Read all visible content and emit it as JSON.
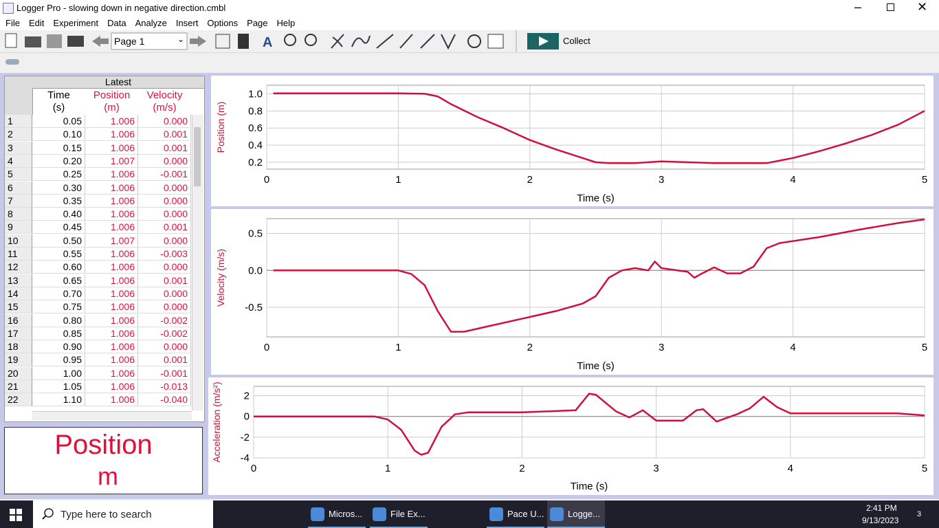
{
  "window": {
    "title": "Logger Pro - slowing down in negative direction.cmbl"
  },
  "menu": [
    "File",
    "Edit",
    "Experiment",
    "Data",
    "Analyze",
    "Insert",
    "Options",
    "Page",
    "Help"
  ],
  "toolbar": {
    "page": "Page 1",
    "collect": "Collect"
  },
  "table": {
    "group": "Latest",
    "columns": [
      {
        "name": "Time",
        "unit": "(s)"
      },
      {
        "name": "Position",
        "unit": "(m)"
      },
      {
        "name": "Velocity",
        "unit": "(m/s)"
      }
    ],
    "rows": [
      [
        "1",
        "0.05",
        "1.006",
        "0.000"
      ],
      [
        "2",
        "0.10",
        "1.006",
        "0.001"
      ],
      [
        "3",
        "0.15",
        "1.006",
        "0.001"
      ],
      [
        "4",
        "0.20",
        "1.007",
        "0.000"
      ],
      [
        "5",
        "0.25",
        "1.006",
        "-0.001"
      ],
      [
        "6",
        "0.30",
        "1.006",
        "0.000"
      ],
      [
        "7",
        "0.35",
        "1.006",
        "0.000"
      ],
      [
        "8",
        "0.40",
        "1.006",
        "0.000"
      ],
      [
        "9",
        "0.45",
        "1.006",
        "0.001"
      ],
      [
        "10",
        "0.50",
        "1.007",
        "0.000"
      ],
      [
        "11",
        "0.55",
        "1.006",
        "-0.003"
      ],
      [
        "12",
        "0.60",
        "1.006",
        "0.000"
      ],
      [
        "13",
        "0.65",
        "1.006",
        "0.001"
      ],
      [
        "14",
        "0.70",
        "1.006",
        "0.000"
      ],
      [
        "15",
        "0.75",
        "1.006",
        "0.000"
      ],
      [
        "16",
        "0.80",
        "1.006",
        "-0.002"
      ],
      [
        "17",
        "0.85",
        "1.006",
        "-0.002"
      ],
      [
        "18",
        "0.90",
        "1.006",
        "0.000"
      ],
      [
        "19",
        "0.95",
        "1.006",
        "0.001"
      ],
      [
        "20",
        "1.00",
        "1.006",
        "-0.001"
      ],
      [
        "21",
        "1.05",
        "1.006",
        "-0.013"
      ],
      [
        "22",
        "1.10",
        "1.006",
        "-0.040"
      ]
    ]
  },
  "meter": {
    "label": "Position",
    "unit": "m"
  },
  "taskbar": {
    "search": "Type here to search",
    "apps": [
      "Micros...",
      "File Ex...",
      "Pace U...",
      "Logge..."
    ],
    "time": "2:41 PM",
    "date": "9/13/2023",
    "notifications": "3"
  },
  "chart_data": [
    {
      "type": "line",
      "xlabel": "Time (s)",
      "ylabel": "Position (m)",
      "color": "#d0103a",
      "grid": true,
      "x": [
        0.05,
        1.0,
        1.2,
        1.3,
        1.4,
        1.6,
        1.8,
        2.0,
        2.2,
        2.4,
        2.5,
        2.6,
        2.8,
        3.0,
        3.2,
        3.4,
        3.6,
        3.8,
        4.0,
        4.2,
        4.4,
        4.6,
        4.8,
        5.0
      ],
      "values": [
        1.006,
        1.006,
        1.0,
        0.97,
        0.88,
        0.73,
        0.6,
        0.46,
        0.35,
        0.25,
        0.2,
        0.19,
        0.19,
        0.21,
        0.2,
        0.19,
        0.19,
        0.19,
        0.25,
        0.33,
        0.42,
        0.52,
        0.64,
        0.8
      ],
      "xlim": [
        0,
        5
      ],
      "xticks": [
        0,
        1,
        2,
        3,
        4,
        5
      ],
      "ylim": [
        0.12,
        1.1
      ],
      "yticks": [
        0.2,
        0.4,
        0.6,
        0.8,
        {
          "value": 1,
          "label": "1.0"
        }
      ]
    },
    {
      "type": "line",
      "xlabel": "Time (s)",
      "ylabel": "Velocity (m/s)",
      "color": "#d0103a",
      "grid": true,
      "x": [
        0.05,
        1.0,
        1.1,
        1.2,
        1.3,
        1.4,
        1.5,
        1.7,
        2.0,
        2.2,
        2.4,
        2.5,
        2.6,
        2.7,
        2.8,
        2.9,
        2.95,
        3.0,
        3.2,
        3.25,
        3.3,
        3.4,
        3.5,
        3.6,
        3.7,
        3.8,
        3.9,
        4.2,
        4.5,
        4.8,
        5.0
      ],
      "values": [
        0,
        0,
        -0.05,
        -0.2,
        -0.55,
        -0.83,
        -0.83,
        -0.75,
        -0.63,
        -0.55,
        -0.45,
        -0.35,
        -0.1,
        0.0,
        0.03,
        0.0,
        0.12,
        0.03,
        -0.02,
        -0.1,
        -0.05,
        0.04,
        -0.04,
        -0.04,
        0.05,
        0.3,
        0.37,
        0.45,
        0.55,
        0.64,
        0.69
      ],
      "xlim": [
        0,
        5
      ],
      "xticks": [
        0,
        1,
        2,
        3,
        4,
        5
      ],
      "ylim": [
        -0.9,
        0.7
      ],
      "yticks": [
        -0.5,
        {
          "value": 0,
          "label": "0.0"
        },
        0.5
      ]
    },
    {
      "type": "line",
      "xlabel": "Time (s)",
      "ylabel": "Acceleration (m/s²)",
      "color": "#d0103a",
      "grid": true,
      "x": [
        0,
        0.9,
        1.0,
        1.1,
        1.2,
        1.25,
        1.3,
        1.4,
        1.5,
        1.6,
        2.0,
        2.4,
        2.5,
        2.55,
        2.7,
        2.8,
        2.9,
        3.0,
        3.2,
        3.3,
        3.35,
        3.45,
        3.6,
        3.7,
        3.8,
        3.9,
        4.0,
        4.5,
        4.8,
        5.0
      ],
      "values": [
        0,
        0,
        -0.3,
        -1.3,
        -3.3,
        -3.7,
        -3.5,
        -1.0,
        0.2,
        0.4,
        0.4,
        0.6,
        2.2,
        2.1,
        0.5,
        -0.1,
        0.6,
        -0.4,
        -0.4,
        0.6,
        0.7,
        -0.5,
        0.2,
        0.8,
        1.9,
        0.9,
        0.3,
        0.3,
        0.3,
        0.1
      ],
      "xlim": [
        0,
        5
      ],
      "xticks": [
        0,
        1,
        2,
        3,
        4,
        5
      ],
      "ylim": [
        -4,
        2.9
      ],
      "yticks": [
        -4,
        -2,
        0,
        2
      ]
    }
  ]
}
